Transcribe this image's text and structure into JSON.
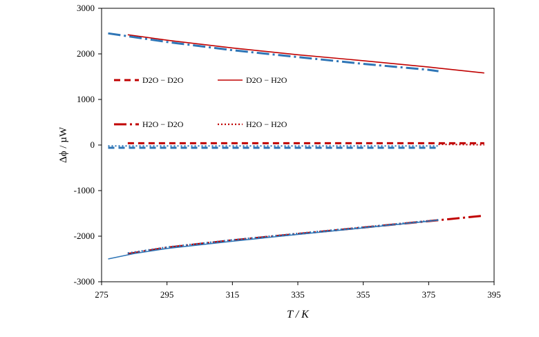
{
  "chart_data": {
    "type": "line",
    "title": "",
    "xlabel": "T / K",
    "ylabel": "Δϕ / µW",
    "xlim": [
      275,
      395
    ],
    "ylim": [
      -3000,
      3000
    ],
    "xticks": [
      275,
      295,
      315,
      335,
      355,
      375,
      395
    ],
    "yticks": [
      -3000,
      -2000,
      -1000,
      0,
      1000,
      2000,
      3000
    ],
    "grid": false,
    "legend_position": "upper-left-inside",
    "legend": [
      {
        "name": "D2O − D2O",
        "color": "#c00000",
        "style": "dashed"
      },
      {
        "name": "D2O − H2O",
        "color": "#c00000",
        "style": "solid"
      },
      {
        "name": "H2O − D2O",
        "color": "#c00000",
        "style": "long-dash-dot"
      },
      {
        "name": "H2O − H2O",
        "color": "#c00000",
        "style": "dotted"
      }
    ],
    "series": [
      {
        "color": "#c00000",
        "style": "solid",
        "x": [
          283,
          295,
          315,
          335,
          355,
          375,
          392
        ],
        "y": [
          2420,
          2300,
          2130,
          1980,
          1850,
          1710,
          1580
        ]
      },
      {
        "color": "#2e75b6",
        "style": "long-dash-dot",
        "x": [
          277,
          295,
          315,
          335,
          355,
          375,
          378
        ],
        "y": [
          2450,
          2260,
          2080,
          1930,
          1780,
          1650,
          1620
        ]
      },
      {
        "color": "#c00000",
        "style": "dashed",
        "x": [
          283,
          300,
          320,
          340,
          360,
          380,
          392
        ],
        "y": [
          40,
          40,
          40,
          40,
          40,
          40,
          40
        ]
      },
      {
        "color": "#c00000",
        "style": "dotted",
        "x": [
          378,
          385,
          392
        ],
        "y": [
          15,
          10,
          5
        ]
      },
      {
        "color": "#2e75b6",
        "style": "dotted",
        "x": [
          277,
          300,
          320,
          340,
          360,
          378
        ],
        "y": [
          -20,
          -20,
          -20,
          -20,
          -20,
          -20
        ]
      },
      {
        "color": "#2e75b6",
        "style": "dashed",
        "x": [
          277,
          300,
          320,
          340,
          360,
          378
        ],
        "y": [
          -60,
          -60,
          -60,
          -60,
          -60,
          -60
        ]
      },
      {
        "color": "#c00000",
        "style": "long-dash-dot",
        "x": [
          283,
          295,
          315,
          335,
          355,
          375,
          392
        ],
        "y": [
          -2390,
          -2250,
          -2090,
          -1950,
          -1810,
          -1670,
          -1550
        ]
      },
      {
        "color": "#2e75b6",
        "style": "solid",
        "x": [
          277,
          285,
          295,
          315,
          335,
          355,
          378
        ],
        "y": [
          -2500,
          -2380,
          -2270,
          -2110,
          -1960,
          -1820,
          -1650
        ]
      },
      {
        "color": "#2e75b6",
        "style": "dotted",
        "x": [
          283,
          295,
          315,
          335,
          355,
          378
        ],
        "y": [
          -2370,
          -2240,
          -2080,
          -1940,
          -1800,
          -1640
        ]
      }
    ]
  }
}
